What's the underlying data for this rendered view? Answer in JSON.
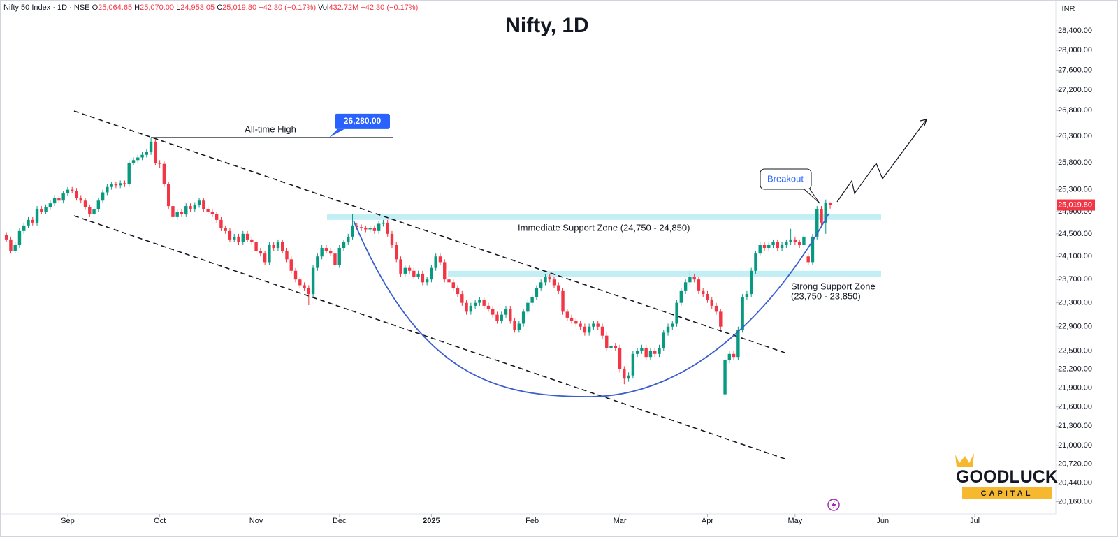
{
  "header": {
    "symbol": "Nifty 50 Index · 1D · NSE",
    "o_key": "O",
    "o": "25,064.65",
    "h_key": "H",
    "h": "25,070.00",
    "l_key": "L",
    "l": "24,953.05",
    "c_key": "C",
    "c": "25,019.80",
    "change": "−42.30 (−0.17%)",
    "vol_key": "Vol",
    "vol": "432.72M",
    "vol_change": "−42.30 (−0.17%)"
  },
  "chart_data": {
    "type": "candlestick",
    "title": "Nifty, 1D",
    "currency": "INR",
    "up_color": "#089981",
    "down_color": "#f23645",
    "log_scale": true,
    "ylim": [
      19830,
      29030
    ],
    "yticks": [
      {
        "value": 28400,
        "label": "28,400.00"
      },
      {
        "value": 28000,
        "label": "28,000.00"
      },
      {
        "value": 27600,
        "label": "27,600.00"
      },
      {
        "value": 27200,
        "label": "27,200.00"
      },
      {
        "value": 26800,
        "label": "26,800.00"
      },
      {
        "value": 26300,
        "label": "26,300.00"
      },
      {
        "value": 25800,
        "label": "25,800.00"
      },
      {
        "value": 25300,
        "label": "25,300.00"
      },
      {
        "value": 24900,
        "label": "24,900.00"
      },
      {
        "value": 24500,
        "label": "24,500.00"
      },
      {
        "value": 24100,
        "label": "24,100.00"
      },
      {
        "value": 23700,
        "label": "23,700.00"
      },
      {
        "value": 23300,
        "label": "23,300.00"
      },
      {
        "value": 22900,
        "label": "22,900.00"
      },
      {
        "value": 22500,
        "label": "22,500.00"
      },
      {
        "value": 22200,
        "label": "22,200.00"
      },
      {
        "value": 21900,
        "label": "21,900.00"
      },
      {
        "value": 21600,
        "label": "21,600.00"
      },
      {
        "value": 21300,
        "label": "21,300.00"
      },
      {
        "value": 21000,
        "label": "21,000.00"
      },
      {
        "value": 20720,
        "label": "20,720.00"
      },
      {
        "value": 20440,
        "label": "20,440.00"
      },
      {
        "value": 20160,
        "label": "20,160.00"
      }
    ],
    "xlim": [
      -1.3,
      239.5
    ],
    "xticks": [
      {
        "value": 14,
        "label": "Sep"
      },
      {
        "value": 35,
        "label": "Oct"
      },
      {
        "value": 57,
        "label": "Nov"
      },
      {
        "value": 76,
        "label": "Dec"
      },
      {
        "value": 97,
        "label": "2025"
      },
      {
        "value": 120,
        "label": "Feb"
      },
      {
        "value": 140,
        "label": "Mar"
      },
      {
        "value": 160,
        "label": "Apr"
      },
      {
        "value": 180,
        "label": "May"
      },
      {
        "value": 200,
        "label": "Jun"
      },
      {
        "value": 221,
        "label": "Jul"
      }
    ],
    "last_price": {
      "value": 25019.8,
      "label": "25,019.80"
    },
    "annotations": {
      "all_time_high": {
        "text": "All-time High",
        "value": 26280,
        "label": "26,280.00"
      },
      "breakout": "Breakout",
      "zones": [
        {
          "label": "Immediate Support Zone (24,750 - 24,850)",
          "range": [
            24750,
            24850
          ]
        },
        {
          "label": "Strong Support Zone",
          "sublabel": "(23,750 - 23,850)",
          "range": [
            23750,
            23850
          ]
        }
      ]
    },
    "candles": [
      [
        24480,
        24530,
        24350,
        24400
      ],
      [
        24400,
        24450,
        24150,
        24200
      ],
      [
        24200,
        24350,
        24150,
        24300
      ],
      [
        24300,
        24600,
        24250,
        24550
      ],
      [
        24550,
        24700,
        24500,
        24650
      ],
      [
        24650,
        24800,
        24600,
        24750
      ],
      [
        24750,
        24800,
        24650,
        24700
      ],
      [
        24700,
        25000,
        24650,
        24950
      ],
      [
        24950,
        25000,
        24850,
        24900
      ],
      [
        24900,
        25030,
        24850,
        24980
      ],
      [
        24980,
        25100,
        24930,
        25050
      ],
      [
        25050,
        25200,
        25000,
        25150
      ],
      [
        25150,
        25200,
        25050,
        25100
      ],
      [
        25100,
        25280,
        25050,
        25230
      ],
      [
        25230,
        25350,
        25180,
        25300
      ],
      [
        25300,
        25350,
        25230,
        25280
      ],
      [
        25280,
        25330,
        25100,
        25150
      ],
      [
        25150,
        25200,
        25050,
        25100
      ],
      [
        25100,
        25150,
        24930,
        24980
      ],
      [
        24980,
        25030,
        24800,
        24850
      ],
      [
        24850,
        25000,
        24800,
        24950
      ],
      [
        24950,
        25150,
        24900,
        25100
      ],
      [
        25100,
        25300,
        25050,
        25250
      ],
      [
        25250,
        25400,
        25200,
        25350
      ],
      [
        25350,
        25450,
        25300,
        25400
      ],
      [
        25400,
        25450,
        25330,
        25380
      ],
      [
        25380,
        25470,
        25330,
        25420
      ],
      [
        25420,
        25470,
        25350,
        25400
      ],
      [
        25400,
        25850,
        25350,
        25800
      ],
      [
        25800,
        25900,
        25750,
        25850
      ],
      [
        25850,
        25950,
        25800,
        25900
      ],
      [
        25900,
        26000,
        25850,
        25950
      ],
      [
        25950,
        26050,
        25900,
        26000
      ],
      [
        26000,
        26280,
        25950,
        26200
      ],
      [
        26200,
        26250,
        25750,
        25800
      ],
      [
        25800,
        25850,
        25700,
        25780
      ],
      [
        25780,
        25830,
        25350,
        25400
      ],
      [
        25400,
        25450,
        24950,
        25000
      ],
      [
        25000,
        25050,
        24750,
        24800
      ],
      [
        24800,
        24950,
        24750,
        24900
      ],
      [
        24900,
        24950,
        24800,
        24850
      ],
      [
        24850,
        25050,
        24800,
        25000
      ],
      [
        25000,
        25050,
        24900,
        24950
      ],
      [
        24950,
        25070,
        24900,
        25020
      ],
      [
        25020,
        25150,
        24970,
        25100
      ],
      [
        25100,
        25150,
        24900,
        24950
      ],
      [
        24950,
        25000,
        24850,
        24900
      ],
      [
        24900,
        24950,
        24800,
        24850
      ],
      [
        24850,
        24900,
        24700,
        24750
      ],
      [
        24750,
        24800,
        24550,
        24600
      ],
      [
        24600,
        24650,
        24500,
        24550
      ],
      [
        24550,
        24600,
        24350,
        24400
      ],
      [
        24400,
        24500,
        24350,
        24450
      ],
      [
        24450,
        24500,
        24300,
        24350
      ],
      [
        24350,
        24550,
        24300,
        24500
      ],
      [
        24500,
        24550,
        24350,
        24400
      ],
      [
        24400,
        24450,
        24300,
        24350
      ],
      [
        24350,
        24400,
        24150,
        24200
      ],
      [
        24200,
        24250,
        24100,
        24150
      ],
      [
        24150,
        24200,
        23950,
        24000
      ],
      [
        24000,
        24350,
        23950,
        24300
      ],
      [
        24300,
        24350,
        24200,
        24250
      ],
      [
        24250,
        24400,
        24200,
        24350
      ],
      [
        24350,
        24400,
        24150,
        24200
      ],
      [
        24200,
        24250,
        24000,
        24050
      ],
      [
        24050,
        24100,
        23800,
        23850
      ],
      [
        23850,
        23900,
        23650,
        23700
      ],
      [
        23700,
        23750,
        23550,
        23600
      ],
      [
        23600,
        23650,
        23500,
        23550
      ],
      [
        23550,
        23600,
        23260,
        23450
      ],
      [
        23450,
        23950,
        23400,
        23900
      ],
      [
        23900,
        24150,
        23850,
        24100
      ],
      [
        24100,
        24300,
        24050,
        24250
      ],
      [
        24250,
        24300,
        24150,
        24200
      ],
      [
        24200,
        24250,
        24100,
        24150
      ],
      [
        24150,
        24200,
        23900,
        23950
      ],
      [
        23950,
        24300,
        23900,
        24250
      ],
      [
        24250,
        24400,
        24200,
        24350
      ],
      [
        24350,
        24500,
        24300,
        24450
      ],
      [
        24450,
        24860,
        24400,
        24650
      ],
      [
        24650,
        24700,
        24570,
        24620
      ],
      [
        24620,
        24670,
        24550,
        24600
      ],
      [
        24600,
        24650,
        24530,
        24580
      ],
      [
        24580,
        24650,
        24530,
        24600
      ],
      [
        24600,
        24650,
        24500,
        24550
      ],
      [
        24550,
        24730,
        24500,
        24680
      ],
      [
        24680,
        24750,
        24630,
        24700
      ],
      [
        24700,
        24750,
        24450,
        24500
      ],
      [
        24500,
        24550,
        24250,
        24300
      ],
      [
        24300,
        24350,
        24000,
        24050
      ],
      [
        24050,
        24100,
        23750,
        23800
      ],
      [
        23800,
        23950,
        23750,
        23900
      ],
      [
        23900,
        23950,
        23800,
        23850
      ],
      [
        23850,
        23900,
        23700,
        23750
      ],
      [
        23750,
        23850,
        23700,
        23800
      ],
      [
        23800,
        23850,
        23600,
        23650
      ],
      [
        23650,
        23750,
        23600,
        23700
      ],
      [
        23700,
        23950,
        23650,
        23900
      ],
      [
        23900,
        24150,
        23850,
        24100
      ],
      [
        24100,
        24150,
        23950,
        24000
      ],
      [
        24000,
        24050,
        23650,
        23700
      ],
      [
        23700,
        23750,
        23600,
        23650
      ],
      [
        23650,
        23700,
        23500,
        23550
      ],
      [
        23550,
        23600,
        23400,
        23450
      ],
      [
        23450,
        23500,
        23250,
        23300
      ],
      [
        23300,
        23350,
        23100,
        23150
      ],
      [
        23150,
        23300,
        23100,
        23250
      ],
      [
        23250,
        23350,
        23200,
        23300
      ],
      [
        23300,
        23400,
        23250,
        23350
      ],
      [
        23350,
        23400,
        23200,
        23250
      ],
      [
        23250,
        23300,
        23150,
        23200
      ],
      [
        23200,
        23250,
        23050,
        23100
      ],
      [
        23100,
        23150,
        22950,
        23000
      ],
      [
        23000,
        23150,
        22950,
        23100
      ],
      [
        23100,
        23250,
        23050,
        23200
      ],
      [
        23200,
        23250,
        22950,
        23000
      ],
      [
        23000,
        23050,
        22800,
        22850
      ],
      [
        22850,
        23000,
        22800,
        22950
      ],
      [
        22950,
        23200,
        22900,
        23150
      ],
      [
        23150,
        23350,
        23100,
        23300
      ],
      [
        23300,
        23450,
        23250,
        23400
      ],
      [
        23400,
        23600,
        23350,
        23550
      ],
      [
        23550,
        23700,
        23500,
        23650
      ],
      [
        23650,
        23800,
        23600,
        23750
      ],
      [
        23750,
        23800,
        23650,
        23700
      ],
      [
        23700,
        23750,
        23550,
        23600
      ],
      [
        23600,
        23650,
        23450,
        23500
      ],
      [
        23500,
        23550,
        23100,
        23150
      ],
      [
        23150,
        23200,
        23000,
        23050
      ],
      [
        23050,
        23100,
        22950,
        23000
      ],
      [
        23000,
        23050,
        22900,
        22950
      ],
      [
        22950,
        23000,
        22850,
        22900
      ],
      [
        22900,
        22950,
        22750,
        22800
      ],
      [
        22800,
        22950,
        22750,
        22900
      ],
      [
        22900,
        23000,
        22850,
        22950
      ],
      [
        22950,
        23000,
        22850,
        22900
      ],
      [
        22900,
        22950,
        22700,
        22750
      ],
      [
        22750,
        22800,
        22500,
        22550
      ],
      [
        22550,
        22630,
        22500,
        22580
      ],
      [
        22580,
        22630,
        22500,
        22550
      ],
      [
        22550,
        22600,
        22150,
        22200
      ],
      [
        22200,
        22250,
        21960,
        22050
      ],
      [
        22050,
        22150,
        22000,
        22100
      ],
      [
        22100,
        22500,
        22050,
        22450
      ],
      [
        22450,
        22550,
        22400,
        22500
      ],
      [
        22500,
        22600,
        22450,
        22550
      ],
      [
        22550,
        22600,
        22350,
        22400
      ],
      [
        22400,
        22550,
        22350,
        22500
      ],
      [
        22500,
        22550,
        22400,
        22450
      ],
      [
        22450,
        22600,
        22400,
        22550
      ],
      [
        22550,
        22850,
        22500,
        22800
      ],
      [
        22800,
        22950,
        22750,
        22900
      ],
      [
        22900,
        23000,
        22850,
        22950
      ],
      [
        22950,
        23350,
        22900,
        23300
      ],
      [
        23300,
        23550,
        23250,
        23500
      ],
      [
        23500,
        23700,
        23450,
        23650
      ],
      [
        23650,
        23870,
        23600,
        23750
      ],
      [
        23750,
        23800,
        23650,
        23700
      ],
      [
        23700,
        23750,
        23450,
        23500
      ],
      [
        23500,
        23550,
        23400,
        23450
      ],
      [
        23450,
        23500,
        23300,
        23350
      ],
      [
        23350,
        23400,
        23200,
        23250
      ],
      [
        23250,
        23300,
        23100,
        23150
      ],
      [
        23150,
        23200,
        22850,
        22900
      ],
      [
        21800,
        22450,
        21740,
        22350
      ],
      [
        22350,
        22500,
        22300,
        22450
      ],
      [
        22450,
        22500,
        22350,
        22400
      ],
      [
        22400,
        22900,
        22350,
        22850
      ],
      [
        22850,
        23450,
        22800,
        23400
      ],
      [
        23400,
        23500,
        23350,
        23450
      ],
      [
        23450,
        23900,
        23400,
        23850
      ],
      [
        23850,
        24200,
        23800,
        24150
      ],
      [
        24150,
        24350,
        24100,
        24300
      ],
      [
        24300,
        24350,
        24200,
        24250
      ],
      [
        24250,
        24350,
        24200,
        24300
      ],
      [
        24300,
        24400,
        24250,
        24350
      ],
      [
        24350,
        24400,
        24200,
        24250
      ],
      [
        24250,
        24350,
        24200,
        24300
      ],
      [
        24300,
        24400,
        24250,
        24350
      ],
      [
        24350,
        24590,
        24300,
        24400
      ],
      [
        24400,
        24450,
        24300,
        24350
      ],
      [
        24350,
        24400,
        24250,
        24300
      ],
      [
        24300,
        24500,
        24250,
        24450
      ],
      [
        24100,
        24150,
        23950,
        24000
      ],
      [
        24000,
        24500,
        23950,
        24450
      ],
      [
        24450,
        25000,
        24400,
        24950
      ],
      [
        24950,
        25000,
        24650,
        24700
      ],
      [
        24700,
        25120,
        24500,
        25060
      ],
      [
        25064.65,
        25070,
        24953.05,
        25019.8
      ]
    ]
  },
  "logo": {
    "name": "GOODLUCK",
    "tagline": "CAPITAL"
  }
}
